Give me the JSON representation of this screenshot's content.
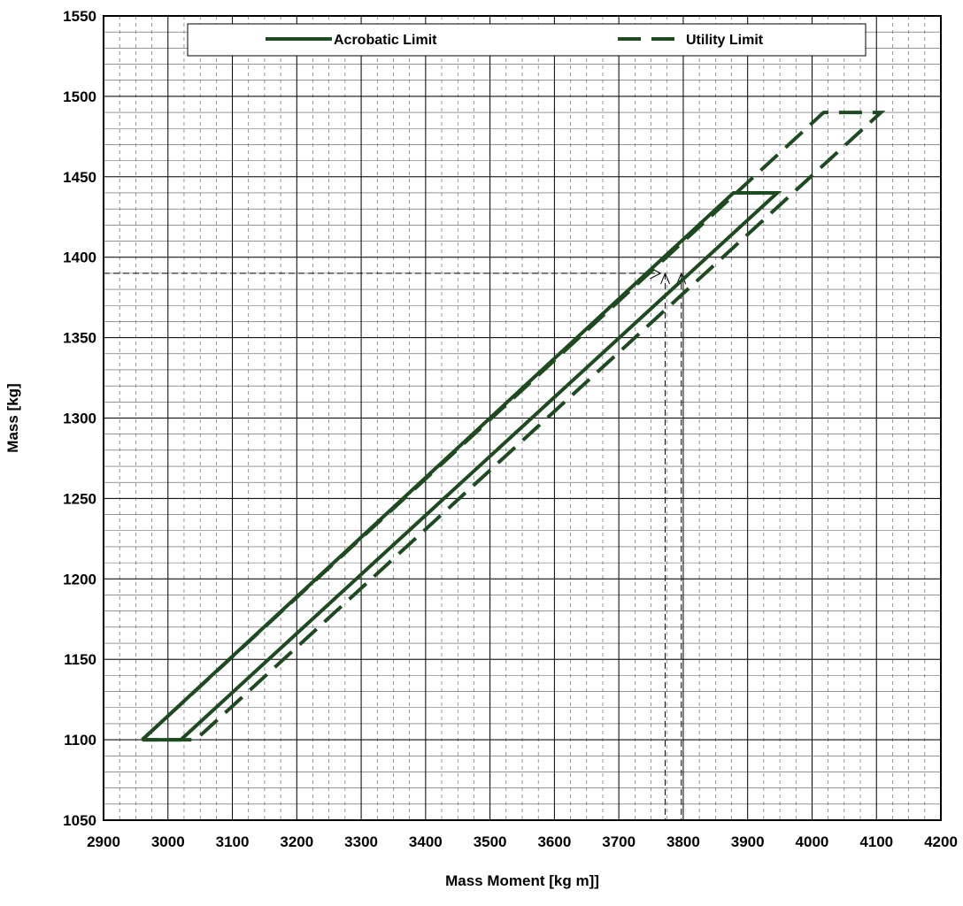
{
  "colors": {
    "series": "#1e4a20",
    "grid_minor": "#555555",
    "grid_major": "#000000",
    "guide": "#000000"
  },
  "chart_data": {
    "type": "line",
    "xlabel": "Mass Moment  [kg m]]",
    "ylabel": "Mass  [kg]",
    "xlim": [
      2900,
      4200
    ],
    "ylim": [
      1050,
      1550
    ],
    "x_ticks": [
      2900,
      3000,
      3100,
      3200,
      3300,
      3400,
      3500,
      3600,
      3700,
      3800,
      3900,
      4000,
      4100,
      4200
    ],
    "y_ticks": [
      1050,
      1100,
      1150,
      1200,
      1250,
      1300,
      1350,
      1400,
      1450,
      1500,
      1550
    ],
    "x_minor_step": 25,
    "y_minor_step": 10,
    "grid": true,
    "legend": {
      "placement": "top-center"
    },
    "series": [
      {
        "name": "Acrobatic Limit",
        "style": "solid",
        "x": [
          2960,
          3878,
          3946,
          3020,
          2960
        ],
        "y": [
          1100,
          1440,
          1440,
          1100,
          1100
        ]
      },
      {
        "name": "Utility Limit",
        "style": "dashed",
        "x": [
          2960,
          4018,
          4107,
          3043,
          2960
        ],
        "y": [
          1100,
          1490,
          1490,
          1100,
          1100
        ]
      }
    ],
    "annotations": [
      {
        "kind": "guide-lines",
        "mass": 1390,
        "moments": [
          3772,
          3797
        ],
        "arrow_end_moment": 3765
      }
    ]
  }
}
